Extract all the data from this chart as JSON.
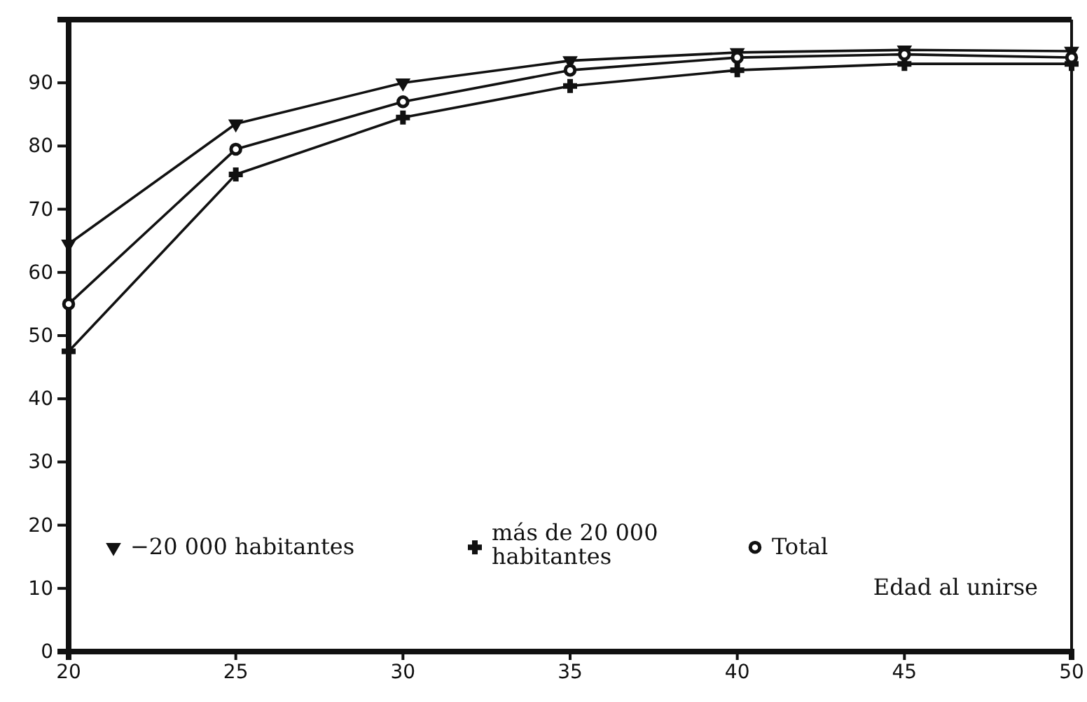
{
  "chart_data": {
    "type": "line",
    "xlabel": "Edad al unirse",
    "x": [
      20,
      25,
      30,
      35,
      40,
      45,
      50
    ],
    "xlim": [
      20,
      50
    ],
    "xticks": [
      20,
      25,
      30,
      35,
      40,
      45,
      50
    ],
    "ylim": [
      0,
      100
    ],
    "yticks": [
      0,
      10,
      20,
      30,
      40,
      50,
      60,
      70,
      80,
      90
    ],
    "grid": false,
    "legend": "bottom left",
    "line_style": "solid",
    "series": [
      {
        "name": "−20 000 habitantes",
        "color": "#111111",
        "marker": "triangle",
        "values": [
          64.5,
          83.5,
          90,
          93.5,
          94.8,
          95.2,
          95
        ]
      },
      {
        "name": "más de 20 000 habitantes",
        "color": "#111111",
        "marker": "cross",
        "values": [
          47.5,
          75.5,
          84.5,
          89.5,
          92,
          93,
          93
        ]
      },
      {
        "name": "Total",
        "color": "#111111",
        "marker": "circle",
        "values": [
          55,
          79.5,
          87,
          92,
          94,
          94.5,
          94
        ]
      }
    ]
  }
}
